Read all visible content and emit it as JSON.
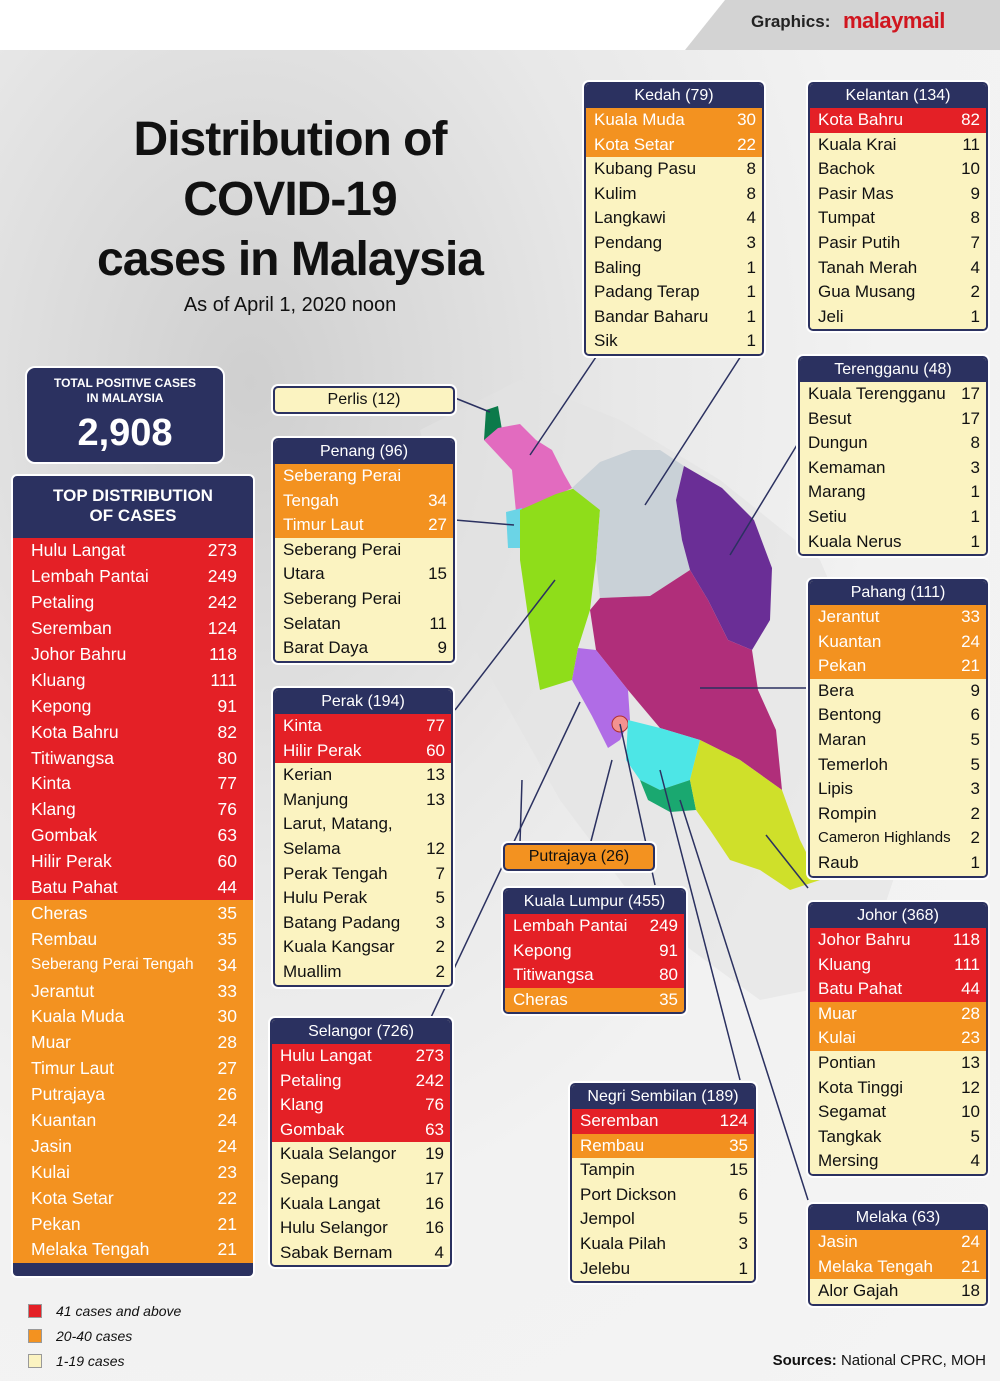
{
  "graphics_label": "Graphics:",
  "brand": "malaymail",
  "title_lines": [
    "Distribution of",
    "COVID-19",
    "cases in Malaysia"
  ],
  "subtitle": "As of April 1, 2020 noon",
  "total": {
    "label_1": "TOTAL POSITIVE CASES",
    "label_2": "IN MALAYSIA",
    "value": "2,908"
  },
  "top_distribution": {
    "header_1": "TOP DISTRIBUTION",
    "header_2": "OF CASES",
    "items": [
      {
        "name": "Hulu Langat",
        "value": "273",
        "level": "r"
      },
      {
        "name": "Lembah Pantai",
        "value": "249",
        "level": "r"
      },
      {
        "name": "Petaling",
        "value": "242",
        "level": "r"
      },
      {
        "name": "Seremban",
        "value": "124",
        "level": "r"
      },
      {
        "name": "Johor Bahru",
        "value": "118",
        "level": "r"
      },
      {
        "name": "Kluang",
        "value": "111",
        "level": "r"
      },
      {
        "name": "Kepong",
        "value": "91",
        "level": "r"
      },
      {
        "name": "Kota Bahru",
        "value": "82",
        "level": "r"
      },
      {
        "name": "Titiwangsa",
        "value": "80",
        "level": "r"
      },
      {
        "name": "Kinta",
        "value": "77",
        "level": "r"
      },
      {
        "name": "Klang",
        "value": "76",
        "level": "r"
      },
      {
        "name": "Gombak",
        "value": "63",
        "level": "r"
      },
      {
        "name": "Hilir Perak",
        "value": "60",
        "level": "r"
      },
      {
        "name": "Batu Pahat",
        "value": "44",
        "level": "r"
      },
      {
        "name": "Cheras",
        "value": "35",
        "level": "o"
      },
      {
        "name": "Rembau",
        "value": "35",
        "level": "o"
      },
      {
        "name": "Seberang Perai Tengah",
        "value": "34",
        "level": "o"
      },
      {
        "name": "Jerantut",
        "value": "33",
        "level": "o"
      },
      {
        "name": "Kuala Muda",
        "value": "30",
        "level": "o"
      },
      {
        "name": "Muar",
        "value": "28",
        "level": "o"
      },
      {
        "name": "Timur Laut",
        "value": "27",
        "level": "o"
      },
      {
        "name": "Putrajaya",
        "value": "26",
        "level": "o"
      },
      {
        "name": "Kuantan",
        "value": "24",
        "level": "o"
      },
      {
        "name": "Jasin",
        "value": "24",
        "level": "o"
      },
      {
        "name": "Kulai",
        "value": "23",
        "level": "o"
      },
      {
        "name": "Kota Setar",
        "value": "22",
        "level": "o"
      },
      {
        "name": "Pekan",
        "value": "21",
        "level": "o"
      },
      {
        "name": "Melaka Tengah",
        "value": "21",
        "level": "o"
      }
    ]
  },
  "legend": [
    {
      "label": "41 cases and above",
      "color": "#e42026"
    },
    {
      "label": "20-40 cases",
      "color": "#f39220"
    },
    {
      "label": "1-19 cases",
      "color": "#fbf3c1"
    }
  ],
  "sources_label": "Sources:",
  "sources_text": " National CPRC, MOH",
  "states": {
    "kedah": {
      "title": "Kedah (79)",
      "rows": [
        {
          "name": "Kuala Muda",
          "value": "30",
          "level": "o"
        },
        {
          "name": "Kota Setar",
          "value": "22",
          "level": "o"
        },
        {
          "name": "Kubang Pasu",
          "value": "8",
          "level": "y"
        },
        {
          "name": "Kulim",
          "value": "8",
          "level": "y"
        },
        {
          "name": "Langkawi",
          "value": "4",
          "level": "y"
        },
        {
          "name": "Pendang",
          "value": "3",
          "level": "y"
        },
        {
          "name": "Baling",
          "value": "1",
          "level": "y"
        },
        {
          "name": "Padang Terap",
          "value": "1",
          "level": "y"
        },
        {
          "name": "Bandar Baharu",
          "value": "1",
          "level": "y"
        },
        {
          "name": "Sik",
          "value": "1",
          "level": "y"
        }
      ]
    },
    "kelantan": {
      "title": "Kelantan (134)",
      "rows": [
        {
          "name": "Kota Bahru",
          "value": "82",
          "level": "r"
        },
        {
          "name": "Kuala Krai",
          "value": "11",
          "level": "y"
        },
        {
          "name": "Bachok",
          "value": "10",
          "level": "y"
        },
        {
          "name": "Pasir Mas",
          "value": "9",
          "level": "y"
        },
        {
          "name": "Tumpat",
          "value": "8",
          "level": "y"
        },
        {
          "name": "Pasir Putih",
          "value": "7",
          "level": "y"
        },
        {
          "name": "Tanah Merah",
          "value": "4",
          "level": "y"
        },
        {
          "name": "Gua Musang",
          "value": "2",
          "level": "y"
        },
        {
          "name": "Jeli",
          "value": "1",
          "level": "y"
        }
      ]
    },
    "terengganu": {
      "title": "Terengganu (48)",
      "rows": [
        {
          "name": "Kuala Terengganu",
          "value": "17",
          "level": "y"
        },
        {
          "name": "Besut",
          "value": "17",
          "level": "y"
        },
        {
          "name": "Dungun",
          "value": "8",
          "level": "y"
        },
        {
          "name": "Kemaman",
          "value": "3",
          "level": "y"
        },
        {
          "name": "Marang",
          "value": "1",
          "level": "y"
        },
        {
          "name": "Setiu",
          "value": "1",
          "level": "y"
        },
        {
          "name": "Kuala  Nerus",
          "value": "1",
          "level": "y"
        }
      ]
    },
    "pahang": {
      "title": "Pahang (111)",
      "rows": [
        {
          "name": "Jerantut",
          "value": "33",
          "level": "o"
        },
        {
          "name": "Kuantan",
          "value": "24",
          "level": "o"
        },
        {
          "name": "Pekan",
          "value": "21",
          "level": "o"
        },
        {
          "name": "Bera",
          "value": "9",
          "level": "y"
        },
        {
          "name": "Bentong",
          "value": "6",
          "level": "y"
        },
        {
          "name": "Maran",
          "value": "5",
          "level": "y"
        },
        {
          "name": "Temerloh",
          "value": "5",
          "level": "y"
        },
        {
          "name": "Lipis",
          "value": "3",
          "level": "y"
        },
        {
          "name": "Rompin",
          "value": "2",
          "level": "y"
        },
        {
          "name": "Cameron Highlands",
          "value": "2",
          "level": "y"
        },
        {
          "name": "Raub",
          "value": "1",
          "level": "y"
        }
      ]
    },
    "johor": {
      "title": "Johor (368)",
      "rows": [
        {
          "name": "Johor Bahru",
          "value": "118",
          "level": "r"
        },
        {
          "name": "Kluang",
          "value": "111",
          "level": "r"
        },
        {
          "name": "Batu Pahat",
          "value": "44",
          "level": "r"
        },
        {
          "name": "Muar",
          "value": "28",
          "level": "o"
        },
        {
          "name": "Kulai",
          "value": "23",
          "level": "o"
        },
        {
          "name": "Pontian",
          "value": "13",
          "level": "y"
        },
        {
          "name": "Kota Tinggi",
          "value": "12",
          "level": "y"
        },
        {
          "name": "Segamat",
          "value": "10",
          "level": "y"
        },
        {
          "name": "Tangkak",
          "value": "5",
          "level": "y"
        },
        {
          "name": "Mersing",
          "value": "4",
          "level": "y"
        }
      ]
    },
    "melaka": {
      "title": "Melaka (63)",
      "rows": [
        {
          "name": "Jasin",
          "value": "24",
          "level": "o"
        },
        {
          "name": "Melaka Tengah",
          "value": "21",
          "level": "o"
        },
        {
          "name": "Alor Gajah",
          "value": "18",
          "level": "y"
        }
      ]
    },
    "penang": {
      "title": "Penang (96)",
      "rows": [
        {
          "name": "Seberang Perai\nTengah",
          "value": "34",
          "level": "o",
          "tall": true
        },
        {
          "name": "Timur Laut",
          "value": "27",
          "level": "o"
        },
        {
          "name": "Seberang Perai\nUtara",
          "value": "15",
          "level": "y",
          "tall": true
        },
        {
          "name": "Seberang Perai\nSelatan",
          "value": "11",
          "level": "y",
          "tall": true
        },
        {
          "name": "Barat  Daya",
          "value": "9",
          "level": "y"
        }
      ]
    },
    "perak": {
      "title": "Perak (194)",
      "rows": [
        {
          "name": "Kinta",
          "value": "77",
          "level": "r"
        },
        {
          "name": "Hilir Perak",
          "value": "60",
          "level": "r"
        },
        {
          "name": "Kerian",
          "value": "13",
          "level": "y"
        },
        {
          "name": "Manjung",
          "value": "13",
          "level": "y"
        },
        {
          "name": "Larut, Matang,\nSelama",
          "value": "12",
          "level": "y",
          "tall": true
        },
        {
          "name": "Perak Tengah",
          "value": "7",
          "level": "y"
        },
        {
          "name": "Hulu Perak",
          "value": "5",
          "level": "y"
        },
        {
          "name": "Batang Padang",
          "value": "3",
          "level": "y"
        },
        {
          "name": "Kuala Kangsar",
          "value": "2",
          "level": "y"
        },
        {
          "name": "Muallim",
          "value": "2",
          "level": "y"
        }
      ]
    },
    "selangor": {
      "title": "Selangor (726)",
      "rows": [
        {
          "name": "Hulu Langat",
          "value": "273",
          "level": "r"
        },
        {
          "name": "Petaling",
          "value": "242",
          "level": "r"
        },
        {
          "name": "Klang",
          "value": "76",
          "level": "r"
        },
        {
          "name": "Gombak",
          "value": "63",
          "level": "r"
        },
        {
          "name": "Kuala Selangor",
          "value": "19",
          "level": "y"
        },
        {
          "name": "Sepang",
          "value": "17",
          "level": "y"
        },
        {
          "name": "Kuala Langat",
          "value": "16",
          "level": "y"
        },
        {
          "name": "Hulu Selangor",
          "value": "16",
          "level": "y"
        },
        {
          "name": "Sabak Bernam",
          "value": "4",
          "level": "y"
        }
      ]
    },
    "kl": {
      "title": "Kuala Lumpur (455)",
      "rows": [
        {
          "name": "Lembah Pantai",
          "value": "249",
          "level": "r"
        },
        {
          "name": "Kepong",
          "value": "91",
          "level": "r"
        },
        {
          "name": "Titiwangsa",
          "value": "80",
          "level": "r"
        },
        {
          "name": "Cheras",
          "value": "35",
          "level": "o"
        }
      ]
    },
    "ns": {
      "title": "Negri Sembilan (189)",
      "rows": [
        {
          "name": "Seremban",
          "value": "124",
          "level": "r"
        },
        {
          "name": "Rembau",
          "value": "35",
          "level": "o"
        },
        {
          "name": "Tampin",
          "value": "15",
          "level": "y"
        },
        {
          "name": "Port  Dickson",
          "value": "6",
          "level": "y"
        },
        {
          "name": "Jempol",
          "value": "5",
          "level": "y"
        },
        {
          "name": "Kuala  Pilah",
          "value": "3",
          "level": "y"
        },
        {
          "name": "Jelebu",
          "value": "1",
          "level": "y"
        }
      ]
    }
  },
  "perlis_label": "Perlis (12)",
  "putrajaya_label": "Putrajaya (26)"
}
